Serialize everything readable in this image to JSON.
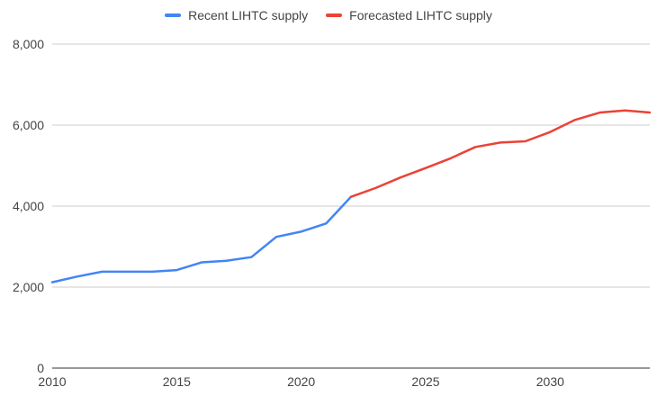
{
  "chart_data": {
    "type": "line",
    "x": [
      2010,
      2011,
      2012,
      2013,
      2014,
      2015,
      2016,
      2017,
      2018,
      2019,
      2020,
      2021,
      2022,
      2023,
      2024,
      2025,
      2026,
      2027,
      2028,
      2029,
      2030,
      2031,
      2032,
      2033,
      2034
    ],
    "series": [
      {
        "name": "Recent LIHTC supply",
        "color": "#4285f4",
        "x": [
          2010,
          2011,
          2012,
          2013,
          2014,
          2015,
          2016,
          2017,
          2018,
          2019,
          2020,
          2021,
          2022
        ],
        "values": [
          2120,
          2260,
          2380,
          2380,
          2380,
          2420,
          2610,
          2650,
          2740,
          3240,
          3370,
          3570,
          4230
        ]
      },
      {
        "name": "Forecasted LIHTC supply",
        "color": "#ea4335",
        "x": [
          2022,
          2023,
          2024,
          2025,
          2026,
          2027,
          2028,
          2029,
          2030,
          2031,
          2032,
          2033,
          2034
        ],
        "values": [
          4230,
          4450,
          4710,
          4940,
          5180,
          5460,
          5570,
          5600,
          5830,
          6130,
          6310,
          6360,
          6310
        ]
      }
    ],
    "xlim": [
      2010,
      2034
    ],
    "ylim": [
      0,
      8000
    ],
    "x_ticks": [
      2010,
      2015,
      2020,
      2025,
      2030
    ],
    "y_ticks": [
      0,
      2000,
      4000,
      6000,
      8000
    ],
    "x_tick_labels": [
      "2010",
      "2015",
      "2020",
      "2025",
      "2030"
    ],
    "y_tick_labels": [
      "0",
      "2,000",
      "4,000",
      "6,000",
      "8,000"
    ],
    "grid": true,
    "legend_position": "top-center",
    "title": "",
    "xlabel": "",
    "ylabel": ""
  }
}
